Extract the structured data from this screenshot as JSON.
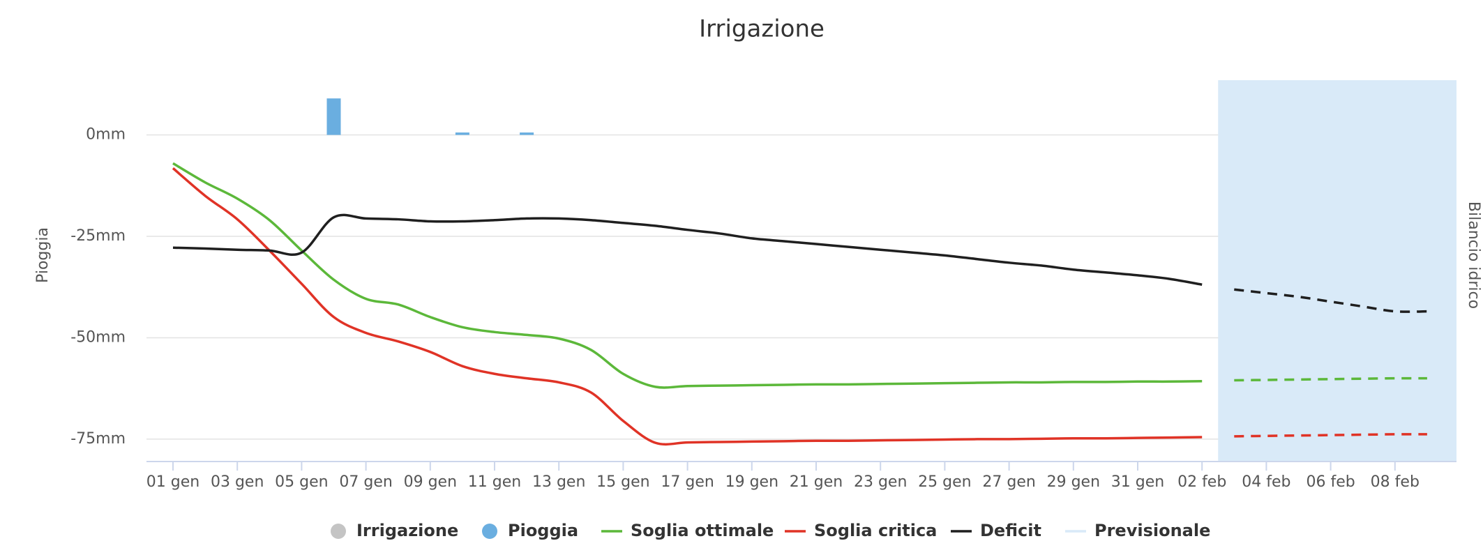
{
  "chart_data": {
    "type": "line",
    "title": "Irrigazione",
    "y_label": "Pioggia",
    "y2_label": "Bilancio idrico",
    "categories": [
      "01 gen",
      null,
      "03 gen",
      null,
      "05 gen",
      null,
      "07 gen",
      null,
      "09 gen",
      null,
      "11 gen",
      null,
      "13 gen",
      null,
      "15 gen",
      null,
      "17 gen",
      null,
      "19 gen",
      null,
      "21 gen",
      null,
      "23 gen",
      null,
      "25 gen",
      null,
      "27 gen",
      null,
      "29 gen",
      null,
      "31 gen",
      null,
      "02 feb",
      null,
      "04 feb",
      null,
      "06 feb",
      null,
      "08 feb",
      null
    ],
    "ylim": [
      -80,
      13.5
    ],
    "yticks": [
      {
        "value": 0,
        "label": "0mm"
      },
      {
        "value": -25,
        "label": "-25mm"
      },
      {
        "value": -50,
        "label": "-50mm"
      },
      {
        "value": -75,
        "label": "-75mm"
      }
    ],
    "grid": true,
    "series": [
      {
        "name": "Irrigazione",
        "type": "column",
        "color": "#c4c4c4",
        "values": [
          null,
          null,
          null,
          null,
          null,
          null,
          null,
          null,
          null,
          null,
          null,
          null,
          null,
          null,
          null,
          null,
          null,
          null,
          null,
          null,
          null,
          null,
          null,
          null,
          null,
          null,
          null,
          null,
          null,
          null,
          null,
          null,
          null,
          null,
          null,
          null,
          null,
          null,
          null,
          null
        ]
      },
      {
        "name": "Pioggia",
        "type": "column",
        "color": "#6aaee0",
        "values": [
          null,
          null,
          null,
          null,
          null,
          9,
          null,
          null,
          null,
          0.6,
          null,
          0.6,
          null,
          null,
          null,
          null,
          null,
          null,
          null,
          null,
          null,
          null,
          null,
          null,
          null,
          null,
          null,
          null,
          null,
          null,
          null,
          null,
          null,
          null,
          null,
          null,
          null,
          null,
          null,
          null
        ]
      },
      {
        "name": "Soglia ottimale",
        "type": "line",
        "color": "#5cb83a",
        "values": [
          -7,
          -11.7,
          -15.7,
          -21,
          -28.5,
          -35.7,
          -40.4,
          -41.8,
          -44.9,
          -47.4,
          -48.6,
          -49.3,
          -50.2,
          -53,
          -58.9,
          -62.1,
          -61.9,
          -61.8,
          -61.7,
          -61.6,
          -61.5,
          -61.5,
          -61.4,
          -61.3,
          -61.2,
          -61.1,
          -61,
          -61,
          -60.9,
          -60.9,
          -60.8,
          -60.8,
          -60.7,
          null,
          null,
          null,
          null,
          null,
          null,
          null
        ],
        "forecast_values": [
          null,
          null,
          null,
          null,
          null,
          null,
          null,
          null,
          null,
          null,
          null,
          null,
          null,
          null,
          null,
          null,
          null,
          null,
          null,
          null,
          null,
          null,
          null,
          null,
          null,
          null,
          null,
          null,
          null,
          null,
          null,
          null,
          null,
          -60.5,
          -60.4,
          -60.3,
          -60.2,
          -60.1,
          -60,
          -60
        ]
      },
      {
        "name": "Soglia critica",
        "type": "line",
        "color": "#e03326",
        "values": [
          -8.2,
          -15,
          -20.8,
          -28.5,
          -36.7,
          -44.9,
          -48.8,
          -50.9,
          -53.5,
          -57,
          -58.9,
          -60,
          -61,
          -63.5,
          -70.5,
          -75.9,
          -75.8,
          -75.7,
          -75.6,
          -75.5,
          -75.4,
          -75.4,
          -75.3,
          -75.2,
          -75.1,
          -75,
          -75,
          -74.9,
          -74.8,
          -74.8,
          -74.7,
          -74.6,
          -74.5,
          null,
          null,
          null,
          null,
          null,
          null,
          null
        ],
        "forecast_values": [
          null,
          null,
          null,
          null,
          null,
          null,
          null,
          null,
          null,
          null,
          null,
          null,
          null,
          null,
          null,
          null,
          null,
          null,
          null,
          null,
          null,
          null,
          null,
          null,
          null,
          null,
          null,
          null,
          null,
          null,
          null,
          null,
          null,
          -74.3,
          -74.2,
          -74.1,
          -74,
          -73.9,
          -73.8,
          -73.8
        ]
      },
      {
        "name": "Deficit",
        "type": "line",
        "color": "#1f1f1f",
        "values": [
          -27.8,
          -28,
          -28.3,
          -28.5,
          -29,
          -20.3,
          -20.6,
          -20.8,
          -21.3,
          -21.3,
          -21,
          -20.6,
          -20.6,
          -21,
          -21.7,
          -22.4,
          -23.4,
          -24.3,
          -25.5,
          -26.2,
          -26.9,
          -27.6,
          -28.3,
          -29,
          -29.7,
          -30.6,
          -31.5,
          -32.2,
          -33.2,
          -33.9,
          -34.6,
          -35.5,
          -36.9,
          null,
          null,
          null,
          null,
          null,
          null,
          null
        ],
        "forecast_values": [
          null,
          null,
          null,
          null,
          null,
          null,
          null,
          null,
          null,
          null,
          null,
          null,
          null,
          null,
          null,
          null,
          null,
          null,
          null,
          null,
          null,
          null,
          null,
          null,
          null,
          null,
          null,
          null,
          null,
          null,
          null,
          null,
          null,
          -38.1,
          -39,
          -39.9,
          -41.1,
          -42.3,
          -43.5,
          -43.5
        ]
      }
    ],
    "band": {
      "name": "Previsionale",
      "color": "#d9eaf8",
      "from": 32.5
    }
  }
}
